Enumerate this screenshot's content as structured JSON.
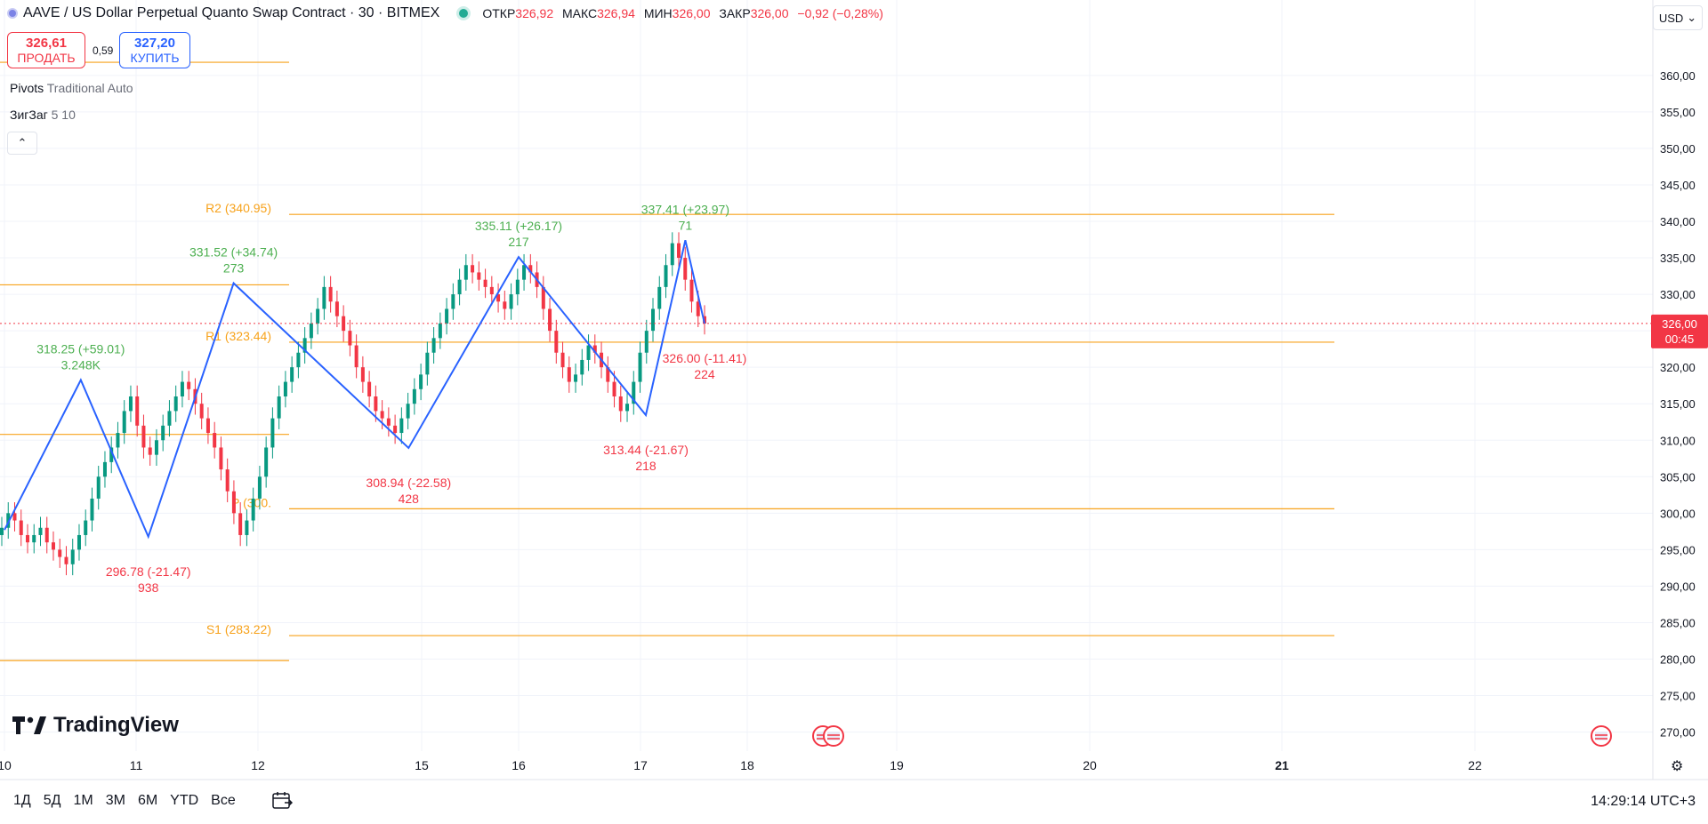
{
  "header": {
    "symbol_title": "AAVE / US Dollar Perpetual Quanto Swap Contract · 30 · BITMEX",
    "ohlc": [
      {
        "label": "ОТКР",
        "value": "326,92"
      },
      {
        "label": "МАКС",
        "value": "326,94"
      },
      {
        "label": "МИН",
        "value": "326,00"
      },
      {
        "label": "ЗАКР",
        "value": "326,00"
      }
    ],
    "change": "−0,92 (−0,28%)"
  },
  "trade": {
    "sell_price": "326,61",
    "sell_label": "ПРОДАТЬ",
    "spread": "0,59",
    "buy_price": "327,20",
    "buy_label": "КУПИТЬ"
  },
  "indicators": [
    {
      "name": "Pivots",
      "params": "Traditional Auto"
    },
    {
      "name": "ЗигЗаг",
      "params": "5 10"
    }
  ],
  "currency": "USD",
  "brand": "TradingView",
  "bottom": {
    "periods": [
      "1Д",
      "5Д",
      "1М",
      "3М",
      "6М",
      "YTD",
      "Все"
    ],
    "clock": "14:29:14 UTC+3"
  },
  "colors": {
    "up": "#089981",
    "down": "#f23645",
    "zigzag": "#2962ff",
    "pivot": "#f7a21b",
    "grid": "#f0f3fa"
  },
  "chart_data": {
    "type": "candlestick",
    "ylim": [
      268,
      364
    ],
    "y_ticks": [
      "270,00",
      "275,00",
      "280,00",
      "285,00",
      "290,00",
      "295,00",
      "300,00",
      "305,00",
      "310,00",
      "315,00",
      "320,00",
      "325,00",
      "330,00",
      "335,00",
      "340,00",
      "345,00",
      "350,00",
      "355,00",
      "360,00"
    ],
    "y_tick_values": [
      270,
      275,
      280,
      285,
      290,
      295,
      300,
      305,
      310,
      315,
      320,
      325,
      330,
      335,
      340,
      345,
      350,
      355,
      360
    ],
    "x_ticks": [
      "10",
      "11",
      "12",
      "15",
      "16",
      "17",
      "18",
      "19",
      "20",
      "21",
      "22"
    ],
    "x_tick_bold": [
      "21"
    ],
    "last_price": {
      "value": 326.0,
      "label": "326,00",
      "countdown": "00:45"
    },
    "pivot_lines": [
      {
        "label": "R2 (340.95)",
        "value": 340.95
      },
      {
        "label": "R1 (323.44)",
        "value": 323.44
      },
      {
        "label": "P (300.",
        "value": 300.6
      },
      {
        "label": "S1 (283.22)",
        "value": 283.22
      }
    ],
    "prev_pivot_lines": [
      361.8,
      331.3,
      310.8,
      279.8
    ],
    "zigzag": [
      {
        "x": 0,
        "y": 297.7
      },
      {
        "x": 0.58,
        "y": 318.25,
        "text": "318.25 (+59.01)",
        "vol": "3.248K",
        "dir": "up"
      },
      {
        "x": 1.1,
        "y": 296.78,
        "text": "296.78 (-21.47)",
        "vol": "938",
        "dir": "down"
      },
      {
        "x": 1.8,
        "y": 331.52,
        "text": "331.52 (+34.74)",
        "vol": "273",
        "dir": "up"
      },
      {
        "x": 2.92,
        "y": 308.94,
        "text": "308.94 (-22.58)",
        "vol": "428",
        "dir": "down"
      },
      {
        "x": 4.0,
        "y": 335.11,
        "text": "335.11 (+26.17)",
        "vol": "217",
        "dir": "up"
      },
      {
        "x": 5.05,
        "y": 313.44,
        "text": "313.44 (-21.67)",
        "vol": "218",
        "dir": "down"
      },
      {
        "x": 5.42,
        "y": 337.41,
        "text": "337.41 (+23.97)",
        "vol": "71",
        "dir": "up"
      },
      {
        "x": 5.6,
        "y": 326.0,
        "text": "326.00 (-11.41)",
        "vol": "224",
        "dir": "down"
      }
    ],
    "candles_close": [
      298,
      300,
      299,
      297,
      296,
      297,
      298,
      296,
      295,
      294,
      293,
      295,
      297,
      299,
      302,
      305,
      307,
      309,
      311,
      314,
      316,
      312,
      309,
      308,
      310,
      312,
      314,
      316,
      318,
      317,
      315,
      313,
      311,
      309,
      306,
      303,
      300,
      297,
      299,
      302,
      305,
      309,
      313,
      316,
      318,
      320,
      322,
      324,
      326,
      328,
      331,
      329,
      327,
      325,
      323,
      320,
      318,
      316,
      314,
      313,
      312,
      311,
      313,
      315,
      317,
      319,
      322,
      324,
      326,
      328,
      330,
      332,
      334,
      333,
      332,
      331,
      330,
      329,
      328,
      330,
      332,
      334,
      333,
      331,
      328,
      325,
      322,
      320,
      318,
      319,
      321,
      323,
      322,
      320,
      318,
      316,
      314,
      315,
      318,
      322,
      325,
      328,
      331,
      334,
      337,
      335,
      332,
      329,
      327,
      326
    ]
  }
}
